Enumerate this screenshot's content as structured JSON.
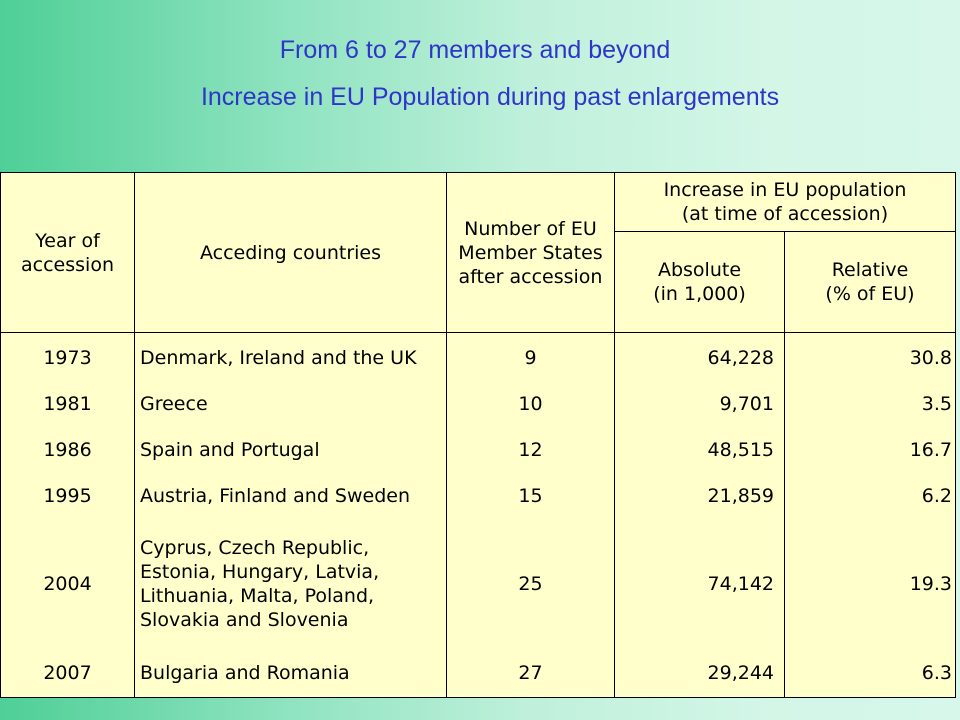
{
  "title": {
    "line1": "From 6 to 27 members and beyond",
    "line2": "Increase in EU Population during past enlargements"
  },
  "table": {
    "headers": {
      "year": "Year of accession",
      "countries": "Acceding countries",
      "members": "Number of EU Member States after accession",
      "increase": "Increase in EU population (at time of accession)",
      "absolute": "Absolute (in 1,000)",
      "relative": "Relative (% of EU)"
    },
    "rows": [
      {
        "year": "1973",
        "countries": "Denmark, Ireland and the UK",
        "members": "9",
        "absolute": "64,228",
        "relative": "30.8"
      },
      {
        "year": "1981",
        "countries": "Greece",
        "members": "10",
        "absolute": "9,701",
        "relative": "3.5"
      },
      {
        "year": "1986",
        "countries": "Spain and Portugal",
        "members": "12",
        "absolute": "48,515",
        "relative": "16.7"
      },
      {
        "year": "1995",
        "countries": "Austria, Finland and Sweden",
        "members": "15",
        "absolute": "21,859",
        "relative": "6.2"
      },
      {
        "year": "2004",
        "countries": "Cyprus, Czech Republic, Estonia, Hungary, Latvia, Lithuania, Malta, Poland, Slovakia and Slovenia",
        "members": "25",
        "absolute": "74,142",
        "relative": "19.3"
      },
      {
        "year": "2007",
        "countries": "Bulgaria and Romania",
        "members": "27",
        "absolute": "29,244",
        "relative": "6.3"
      }
    ]
  }
}
